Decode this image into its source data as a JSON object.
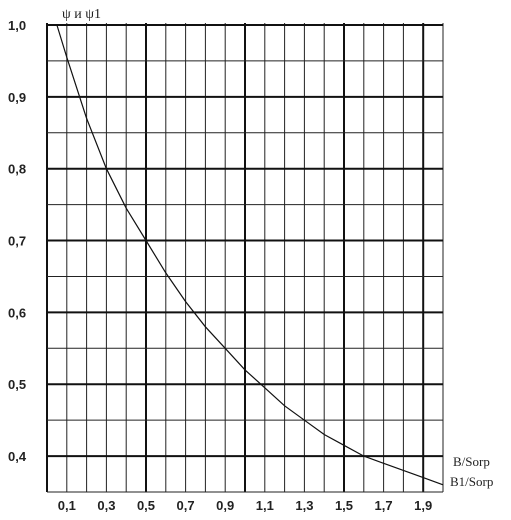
{
  "chart_data": {
    "type": "line",
    "ylabel": "ψ и ψ1",
    "xlabel": [
      "B/Sorp",
      "B1/Sorp"
    ],
    "xlim": [
      0.0,
      2.0
    ],
    "ylim": [
      0.35,
      1.0
    ],
    "x_ticks": [
      "0,1",
      "0,3",
      "0,5",
      "0,7",
      "0,9",
      "1,1",
      "1,3",
      "1,5",
      "1,7",
      "1,9"
    ],
    "y_ticks": [
      "1,0",
      "0,9",
      "0,8",
      "0,7",
      "0,6",
      "0,5",
      "0,4"
    ],
    "grid": true,
    "series": [
      {
        "x": [
          0.05,
          0.1,
          0.2,
          0.3,
          0.4,
          0.5,
          0.6,
          0.7,
          0.8,
          0.9,
          1.0,
          1.1,
          1.2,
          1.3,
          1.4,
          1.5,
          1.6,
          1.7,
          1.8,
          1.9,
          2.0
        ],
        "y": [
          1.0,
          0.955,
          0.87,
          0.8,
          0.745,
          0.7,
          0.655,
          0.615,
          0.58,
          0.55,
          0.52,
          0.495,
          0.47,
          0.45,
          0.43,
          0.415,
          0.4,
          0.39,
          0.38,
          0.37,
          0.36
        ]
      }
    ]
  }
}
